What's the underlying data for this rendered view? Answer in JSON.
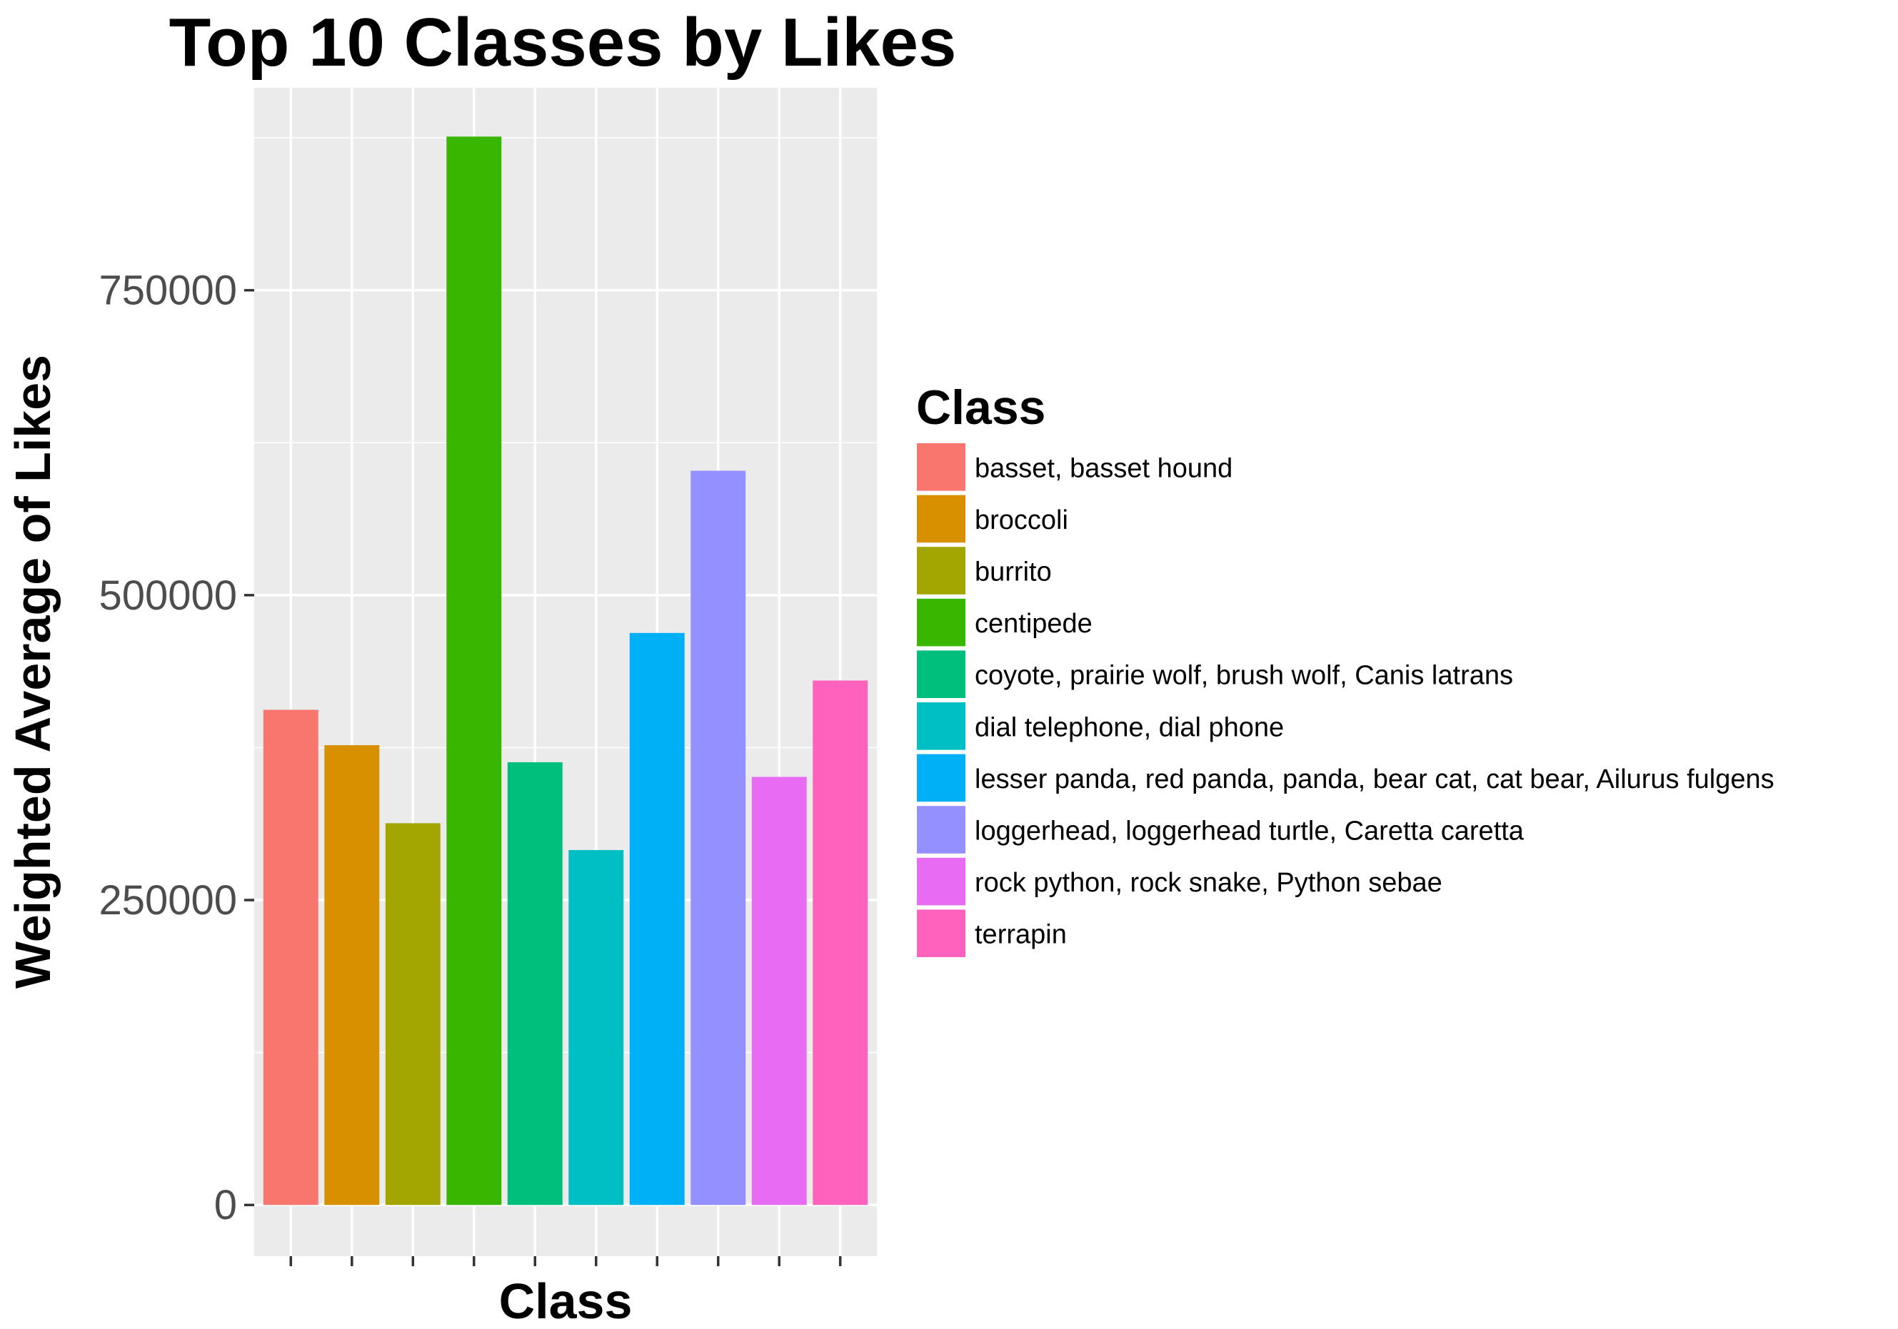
{
  "chart_data": {
    "type": "bar",
    "title": "Top 10 Classes by Likes",
    "xlabel": "Class",
    "ylabel": "Weighted Average of Likes",
    "categories": [
      "basset, basset hound",
      "broccoli",
      "burrito",
      "centipede",
      "coyote, prairie wolf, brush wolf, Canis latrans",
      "dial telephone, dial phone",
      "lesser panda, red panda, panda, bear cat, cat bear, Ailurus fulgens",
      "loggerhead, loggerhead turtle, Caretta caretta",
      "rock python, rock snake, Python sebae",
      "terrapin"
    ],
    "values": [
      406000,
      377000,
      313000,
      876000,
      363000,
      291000,
      469000,
      602000,
      351000,
      430000
    ],
    "colors": [
      "#F8766D",
      "#D89000",
      "#A3A500",
      "#39B600",
      "#00BF7D",
      "#00BFC4",
      "#00B0F6",
      "#9590FF",
      "#E76BF3",
      "#FF62BC"
    ],
    "yticks": [
      "0",
      "250000",
      "500000",
      "750000"
    ],
    "ylim": [
      -42000,
      916000
    ],
    "grid": true,
    "panel_background": "#EBEBEB",
    "legend": {
      "title": "Class",
      "position": "right"
    }
  }
}
